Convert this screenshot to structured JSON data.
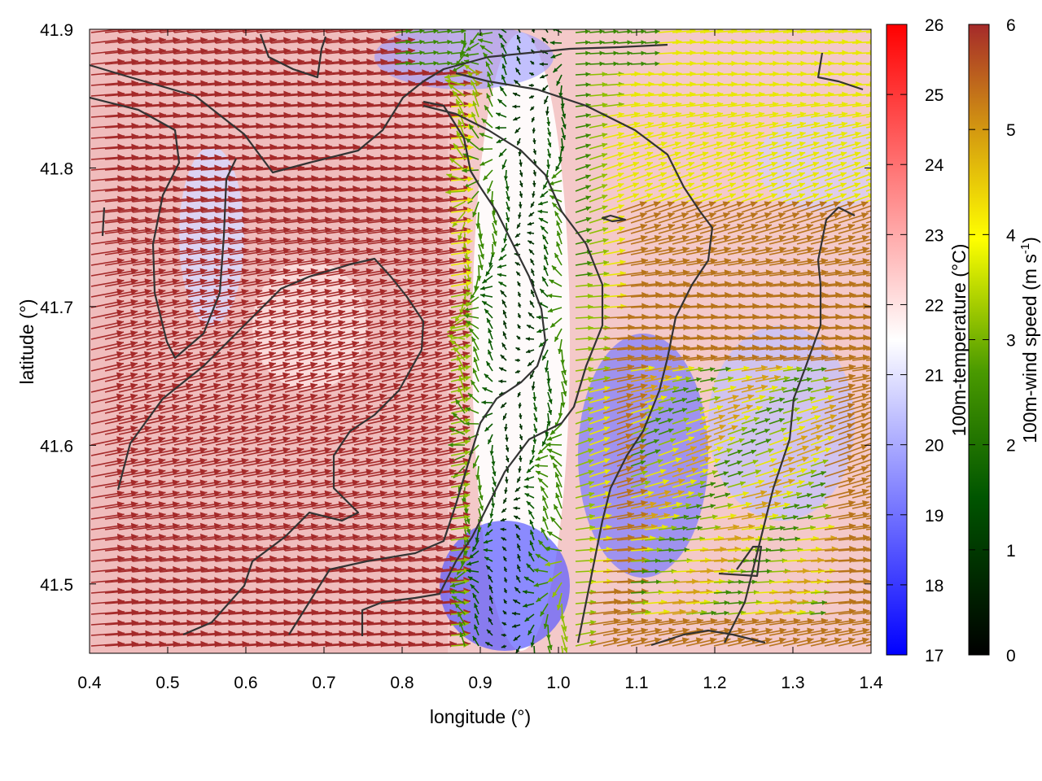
{
  "chart_data": {
    "type": "heatmap",
    "xlabel": "longitude (°)",
    "ylabel": "latitude (°)",
    "xlim": [
      0.4,
      1.4
    ],
    "ylim": [
      41.45,
      41.9
    ],
    "x_ticks": [
      "0.4",
      "0.5",
      "0.6",
      "0.7",
      "0.8",
      "0.9",
      "1.0",
      "1.1",
      "1.2",
      "1.3",
      "1.4"
    ],
    "y_ticks": [
      "41.5",
      "41.6",
      "41.7",
      "41.8",
      "41.9"
    ],
    "x_tick_values": [
      0.4,
      0.5,
      0.6,
      0.7,
      0.8,
      0.9,
      1.0,
      1.1,
      1.2,
      1.3,
      1.4
    ],
    "y_tick_values": [
      41.5,
      41.6,
      41.7,
      41.8,
      41.9
    ],
    "temperature_colorbar": {
      "label": "100m-temperature (°C)",
      "range": [
        17,
        26
      ],
      "ticks": [
        "17",
        "18",
        "19",
        "20",
        "21",
        "22",
        "23",
        "24",
        "25",
        "26"
      ],
      "tick_values": [
        17,
        18,
        19,
        20,
        21,
        22,
        23,
        24,
        25,
        26
      ],
      "colors": [
        "#0000ff",
        "#ffffff",
        "#ff0000"
      ]
    },
    "wind_colorbar": {
      "label_main": "100m-wind speed (m s",
      "label_sup": "-1",
      "label_close": ")",
      "range": [
        0,
        6
      ],
      "ticks": [
        "0",
        "1",
        "2",
        "3",
        "4",
        "5",
        "6"
      ],
      "tick_values": [
        0,
        1,
        2,
        3,
        4,
        5,
        6
      ],
      "colors": [
        "#000000",
        "#006400",
        "#7fbf00",
        "#ffff00",
        "#d4a017",
        "#b5651d",
        "#a52a2a"
      ]
    },
    "contour_color": "#333333",
    "description_fields": {
      "series": [
        {
          "name": "temperature field",
          "values": "background color map 17–26 °C"
        },
        {
          "name": "wind vectors",
          "values": "arrow field colored by speed 0–6 m/s"
        }
      ]
    }
  }
}
